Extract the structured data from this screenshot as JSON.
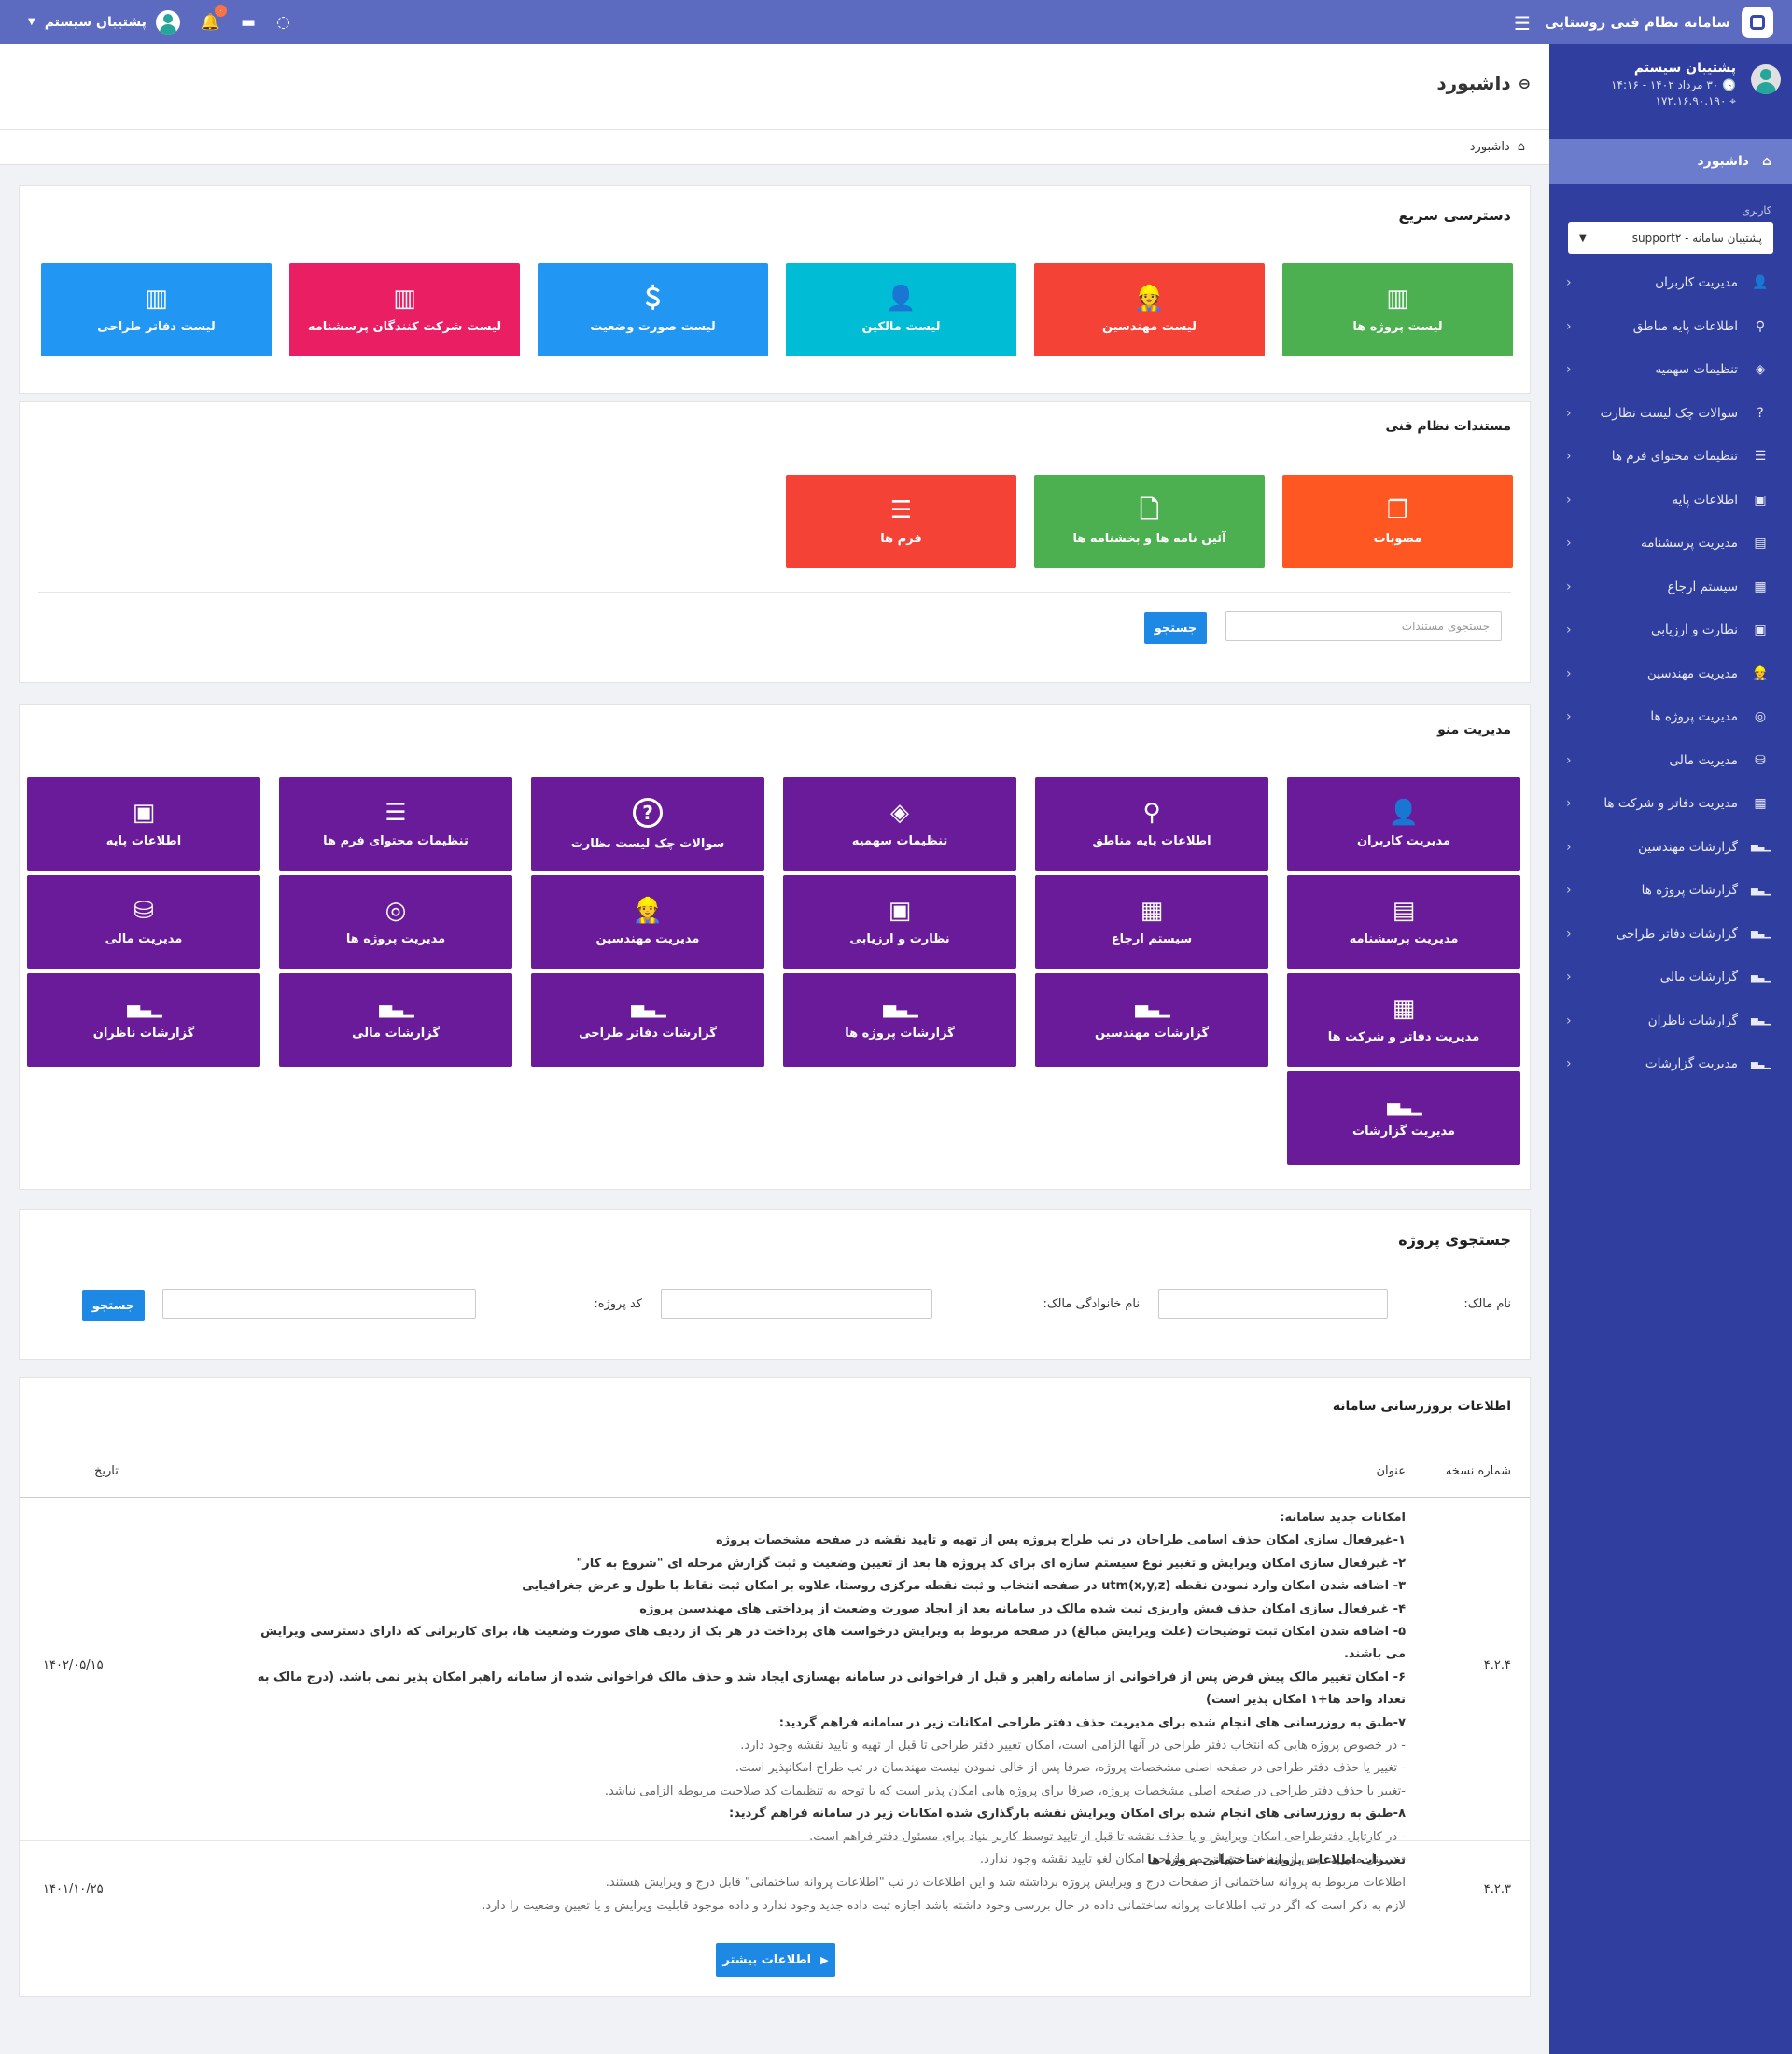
{
  "topbar": {
    "app_title": "سامانه نظام فنی روستایی",
    "user_name": "پشتیبان سیستم",
    "notification_count": "۰"
  },
  "sidebar": {
    "profile": {
      "name": "پشتیبان سیستم",
      "datetime": "۳۰ مرداد ۱۴۰۲ - ۱۴:۱۶",
      "ip": "۱۷۲.۱۶.۹۰.۱۹۰"
    },
    "active_item": "داشبورد",
    "user_label": "کاربری",
    "user_select": "پشتیبان سامانه - support۲",
    "items": [
      {
        "label": "مدیریت کاربران",
        "icon": "user-tie-icon"
      },
      {
        "label": "اطلاعات پایه مناطق",
        "icon": "location-icon"
      },
      {
        "label": "تنظیمات سهمیه",
        "icon": "layers-icon"
      },
      {
        "label": "سوالات چک لیست نظارت",
        "icon": "question-icon"
      },
      {
        "label": "تنظیمات محتوای فرم ها",
        "icon": "list-icon"
      },
      {
        "label": "اطلاعات پایه",
        "icon": "id-card-icon"
      },
      {
        "label": "مدیریت پرسشنامه",
        "icon": "form-icon"
      },
      {
        "label": "سیستم ارجاع",
        "icon": "newspaper-icon"
      },
      {
        "label": "نظارت و ارزیابی",
        "icon": "id-card-icon"
      },
      {
        "label": "مدیریت مهندسین",
        "icon": "engineer-icon"
      },
      {
        "label": "مدیریت پروژه ها",
        "icon": "database-icon"
      },
      {
        "label": "مدیریت مالی",
        "icon": "money-icon"
      },
      {
        "label": "مدیریت دفاتر و شرکت ها",
        "icon": "building-icon"
      },
      {
        "label": "گزارشات مهندسین",
        "icon": "bar-chart-icon"
      },
      {
        "label": "گزارشات پروژه ها",
        "icon": "bar-chart-icon"
      },
      {
        "label": "گزارشات دفاتر طراحی",
        "icon": "bar-chart-icon"
      },
      {
        "label": "گزارشات مالی",
        "icon": "bar-chart-icon"
      },
      {
        "label": "گزارشات ناظران",
        "icon": "bar-chart-icon"
      },
      {
        "label": "مدیریت گزارشات",
        "icon": "bar-chart-icon"
      }
    ]
  },
  "page": {
    "title": "داشبورد",
    "breadcrumb": "داشبورد"
  },
  "quick_access": {
    "title": "دسترسی سریع",
    "tiles": [
      {
        "label": "لیست پروژه ها",
        "color": "#4caf50",
        "icon": "books-icon"
      },
      {
        "label": "لیست مهندسین",
        "color": "#f44336",
        "icon": "engineer-icon"
      },
      {
        "label": "لیست مالکین",
        "color": "#00bcd4",
        "icon": "user-icon"
      },
      {
        "label": "لیست صورت وضعیت",
        "color": "#2196f3",
        "icon": "dollar-icon"
      },
      {
        "label": "لیست شرکت کنندگان پرسشنامه",
        "color": "#e91e63",
        "icon": "books-icon"
      },
      {
        "label": "لیست دفاتر طراحی",
        "color": "#2196f3",
        "icon": "books-icon"
      }
    ]
  },
  "documents": {
    "title": "مستندات نظام فنی",
    "tiles": [
      {
        "label": "مصوبات",
        "color": "#ff5722",
        "icon": "copy-icon"
      },
      {
        "label": "آئین نامه ها و بخشنامه ها",
        "color": "#4caf50",
        "icon": "file-icon"
      },
      {
        "label": "فرم ها",
        "color": "#f44336",
        "icon": "list-icon"
      }
    ],
    "search_placeholder": "جستجوی مستندات",
    "search_button": "جستجو"
  },
  "menu_management": {
    "title": "مدیریت منو",
    "color": "#6a1b9a",
    "tiles": [
      {
        "label": "مدیریت کاربران",
        "icon": "user-tie-icon"
      },
      {
        "label": "اطلاعات پایه مناطق",
        "icon": "location-icon"
      },
      {
        "label": "تنظیمات سهمیه",
        "icon": "layers-icon"
      },
      {
        "label": "سوالات چک لیست نظارت",
        "icon": "question-icon"
      },
      {
        "label": "تنظیمات محتوای فرم ها",
        "icon": "list-icon"
      },
      {
        "label": "اطلاعات پایه",
        "icon": "id-card-icon"
      },
      {
        "label": "مدیریت پرسشنامه",
        "icon": "form-icon"
      },
      {
        "label": "سیستم ارجاع",
        "icon": "newspaper-icon"
      },
      {
        "label": "نظارت و ارزیابی",
        "icon": "id-card-icon"
      },
      {
        "label": "مدیریت مهندسین",
        "icon": "engineer-icon"
      },
      {
        "label": "مدیریت پروژه ها",
        "icon": "database-icon"
      },
      {
        "label": "مدیریت مالی",
        "icon": "money-icon"
      },
      {
        "label": "مدیریت دفاتر و شرکت ها",
        "icon": "building-icon"
      },
      {
        "label": "گزارشات مهندسین",
        "icon": "bar-chart-icon"
      },
      {
        "label": "گزارشات پروژه ها",
        "icon": "bar-chart-icon"
      },
      {
        "label": "گزارشات دفاتر طراحی",
        "icon": "bar-chart-icon"
      },
      {
        "label": "گزارشات مالی",
        "icon": "bar-chart-icon"
      },
      {
        "label": "گزارشات ناظران",
        "icon": "bar-chart-icon"
      },
      {
        "label": "مدیریت گزارشات",
        "icon": "bar-chart-icon"
      }
    ]
  },
  "project_search": {
    "title": "جستجوی پروژه",
    "owner_name_label": "نام مالک:",
    "owner_family_label": "نام خانوادگی مالک:",
    "project_code_label": "کد پروژه:",
    "button": "جستجو"
  },
  "updates": {
    "title": "اطلاعات بروزرسانی سامانه",
    "columns": {
      "version": "شماره نسخه",
      "subject": "عنوان",
      "date": "تاریخ"
    },
    "more_button": "اطلاعات بیشتر",
    "rows": [
      {
        "version": "۴.۲.۴",
        "date": "۱۴۰۲/۰۵/۱۵",
        "lines": [
          {
            "t": "امکانات جدید سامانه:",
            "s": "b"
          },
          {
            "t": "۱-غیرفعال سازی امکان حذف اسامی طراحان در تب طراح پروژه پس از تهیه و تایید نقشه در صفحه مشخصات پروژه",
            "s": "b"
          },
          {
            "t": "۲- غیرفعال سازی امکان ویرایش و تغییر نوع سیستم سازه ای برای کد پروژه ها بعد از تعیین وضعیت و ثبت گزارش مرحله ای \"شروع به کار\"",
            "s": "b"
          },
          {
            "t": "۳- اضافه شدن امکان وارد نمودن نقطه utm(x,y,z) در صفحه انتخاب و ثبت نقطه مرکزی روستا، علاوه بر امکان ثبت نقاط با طول و عرض جغرافیایی",
            "s": "b"
          },
          {
            "t": "۴- غیرفعال سازی امکان حذف فیش واریزی ثبت شده مالک در سامانه بعد از ایجاد صورت وضعیت از پرداختی های مهندسین پروژه",
            "s": "b"
          },
          {
            "t": "۵- اضافه شدن امکان ثبت توضیحات (علت ویرایش مبالغ) در صفحه مربوط به ویرایش درخواست های پرداخت در هر یک از ردیف های صورت وضعیت ها، برای کاربرانی که دارای دسترسی ویرایش می باشند.",
            "s": "b"
          },
          {
            "t": "۶- امکان تغییر مالک پیش فرض پس از فراخوانی از سامانه راهبر و قبل از فراخوانی در سامانه بهسازی ایجاد شد و حذف مالک فراخوانی شده از سامانه راهبر امکان پذیر نمی باشد. (درج مالک به تعداد واحد ها+۱ امکان پذیر است)",
            "s": "b"
          },
          {
            "t": "۷-طبق به روزرسانی های انجام شده برای مدیریت حذف دفتر طراحی امکانات زیر در سامانه فراهم گردید:",
            "s": "b"
          },
          {
            "t": "- در خصوص پروژه هایی که انتخاب دفتر طراحی در آنها الزامی است، امکان تغییر دفتر طراحی تا قبل از تهیه و تایید نقشه وجود دارد.",
            "s": "g"
          },
          {
            "t": "- تغییر یا حذف دفتر طراحی در صفحه اصلی مشخصات پروژه، صرفا پس از خالی نمودن لیست مهندسان در تب طراح امکانپذیر است.",
            "s": "g"
          },
          {
            "t": "-تغییر یا حذف دفتر طراحی در صفحه اصلی مشخصات پروژه، صرفا برای پروژه هایی امکان پذیر است که با توجه به تنظیمات کد صلاحیت مربوطه الزامی نباشد.",
            "s": "g"
          },
          {
            "t": "۸-طبق به روزرسانی های انجام شده برای امکان ویرایش نقشه بارگذاری شده امکانات زیر در سامانه فراهم گردید:",
            "s": "b"
          },
          {
            "t": "- در کارتابل دفترطراحی امکان ویرایش و یا حذف نقشه تا قبل از تایید توسط کاربر بنیاد برای مسئول دفتر فراهم است.",
            "s": "g"
          },
          {
            "t": "- در پنل مدیریت پس از پرداخت حق‌الزحمه طراحی امکان لغو تایید نقشه وجود ندارد.",
            "s": "g"
          }
        ]
      },
      {
        "version": "۴.۲.۳",
        "date": "۱۴۰۱/۱۰/۲۵",
        "lines": [
          {
            "t": "تغییرات اطلاعات پروانه ساختمانی پروژه ها",
            "s": "b"
          },
          {
            "t": "اطلاعات مربوط به پروانه ساختمانی از صفحات درج و ویرایش پروژه برداشته شد و این اطلاعات در تب \"اطلاعات پروانه ساختمانی\" قابل درج و ویرایش هستند.",
            "s": "g"
          },
          {
            "t": "لازم به ذکر است که اگر در تب اطلاعات پروانه ساختمانی داده در حال بررسی وجود داشته باشد اجازه ثبت داده جدید وجود ندارد و داده موجود قابلیت ویرایش و یا تعیین وضعیت را دارد.",
            "s": "g"
          }
        ]
      }
    ]
  }
}
